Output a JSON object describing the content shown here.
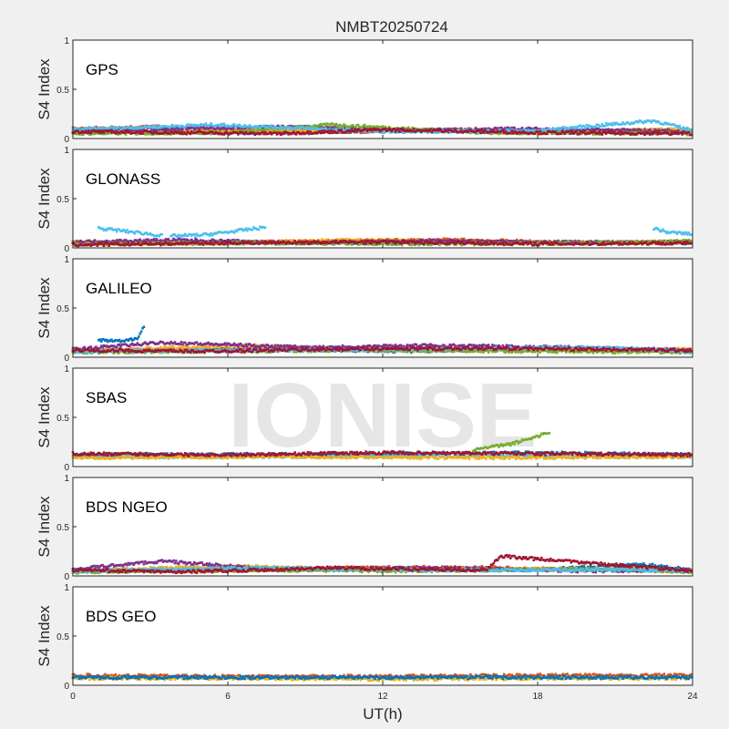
{
  "chart_data": {
    "type": "scatter",
    "title": "NMBT20250724",
    "xlabel": "UT(h)",
    "ylabel": "S4 Index",
    "xlim": [
      0,
      24
    ],
    "ylim": [
      0,
      1
    ],
    "xticks": [
      "0",
      "6",
      "12",
      "18",
      "24"
    ],
    "yticks": [
      "0",
      "0.5",
      "1"
    ],
    "watermark": "IONISE",
    "colors": [
      "#0072BD",
      "#D95319",
      "#EDB120",
      "#7E2F8E",
      "#77AC30",
      "#4DBEEE",
      "#A2142F"
    ],
    "panels": [
      {
        "name": "GPS",
        "series": [
          {
            "c": 0,
            "x": [
              0,
              4,
              8,
              12,
              16,
              20,
              24
            ],
            "y": [
              0.08,
              0.07,
              0.06,
              0.08,
              0.07,
              0.06,
              0.08
            ]
          },
          {
            "c": 1,
            "x": [
              0,
              3,
              7,
              11,
              15,
              19,
              24
            ],
            "y": [
              0.1,
              0.12,
              0.08,
              0.07,
              0.09,
              0.07,
              0.09
            ]
          },
          {
            "c": 2,
            "x": [
              0,
              5,
              10,
              14,
              18,
              24
            ],
            "y": [
              0.06,
              0.07,
              0.09,
              0.08,
              0.06,
              0.1
            ]
          },
          {
            "c": 3,
            "x": [
              0,
              4,
              9,
              13,
              17,
              22,
              24
            ],
            "y": [
              0.07,
              0.1,
              0.12,
              0.08,
              0.1,
              0.08,
              0.07
            ]
          },
          {
            "c": 4,
            "x": [
              0,
              6,
              10,
              16,
              24
            ],
            "y": [
              0.05,
              0.06,
              0.14,
              0.06,
              0.05
            ]
          },
          {
            "c": 5,
            "x": [
              0,
              5.5,
              12,
              18,
              22.5,
              24
            ],
            "y": [
              0.09,
              0.14,
              0.07,
              0.08,
              0.18,
              0.08
            ]
          },
          {
            "c": 6,
            "x": [
              0,
              4,
              8,
              12,
              18,
              24
            ],
            "y": [
              0.07,
              0.06,
              0.05,
              0.09,
              0.06,
              0.05
            ]
          }
        ]
      },
      {
        "name": "GLONASS",
        "series": [
          {
            "c": 5,
            "x": [
              1,
              2,
              3,
              3.5
            ],
            "y": [
              0.2,
              0.17,
              0.14,
              0.12
            ]
          },
          {
            "c": 5,
            "x": [
              3.8,
              5,
              6,
              7.5
            ],
            "y": [
              0.12,
              0.13,
              0.16,
              0.21
            ]
          },
          {
            "c": 5,
            "x": [
              22.5,
              23,
              24
            ],
            "y": [
              0.2,
              0.16,
              0.14
            ]
          },
          {
            "c": 0,
            "x": [
              0,
              6,
              12,
              18,
              24
            ],
            "y": [
              0.05,
              0.06,
              0.05,
              0.06,
              0.05
            ]
          },
          {
            "c": 1,
            "x": [
              0,
              5,
              10,
              15,
              20,
              24
            ],
            "y": [
              0.06,
              0.05,
              0.07,
              0.08,
              0.05,
              0.06
            ]
          },
          {
            "c": 2,
            "x": [
              0,
              6,
              11,
              17,
              24
            ],
            "y": [
              0.04,
              0.05,
              0.08,
              0.05,
              0.06
            ]
          },
          {
            "c": 3,
            "x": [
              0,
              4,
              9,
              14,
              20,
              24
            ],
            "y": [
              0.06,
              0.08,
              0.05,
              0.07,
              0.05,
              0.06
            ]
          },
          {
            "c": 4,
            "x": [
              0,
              7,
              14,
              21,
              24
            ],
            "y": [
              0.04,
              0.05,
              0.04,
              0.05,
              0.07
            ]
          },
          {
            "c": 6,
            "x": [
              0,
              6,
              12,
              18,
              24
            ],
            "y": [
              0.03,
              0.05,
              0.06,
              0.04,
              0.05
            ]
          }
        ]
      },
      {
        "name": "GALILEO",
        "series": [
          {
            "c": 0,
            "x": [
              1,
              2,
              2.5,
              2.8
            ],
            "y": [
              0.17,
              0.16,
              0.2,
              0.33
            ]
          },
          {
            "c": 0,
            "x": [
              3,
              8,
              13,
              18,
              24
            ],
            "y": [
              0.07,
              0.08,
              0.06,
              0.09,
              0.06
            ]
          },
          {
            "c": 1,
            "x": [
              0,
              6,
              12,
              18,
              24
            ],
            "y": [
              0.07,
              0.08,
              0.1,
              0.08,
              0.07
            ]
          },
          {
            "c": 2,
            "x": [
              0,
              6.5,
              12,
              18,
              24
            ],
            "y": [
              0.06,
              0.12,
              0.07,
              0.07,
              0.08
            ]
          },
          {
            "c": 3,
            "x": [
              0,
              3.5,
              9,
              14,
              19,
              24
            ],
            "y": [
              0.08,
              0.15,
              0.1,
              0.12,
              0.1,
              0.07
            ]
          },
          {
            "c": 4,
            "x": [
              0,
              6,
              12,
              18,
              24
            ],
            "y": [
              0.05,
              0.06,
              0.07,
              0.06,
              0.05
            ]
          },
          {
            "c": 5,
            "x": [
              0,
              7,
              13,
              20,
              24
            ],
            "y": [
              0.06,
              0.07,
              0.08,
              0.1,
              0.06
            ]
          },
          {
            "c": 6,
            "x": [
              0,
              5,
              10,
              16,
              24
            ],
            "y": [
              0.07,
              0.06,
              0.08,
              0.09,
              0.07
            ]
          }
        ]
      },
      {
        "name": "SBAS",
        "series": [
          {
            "c": 0,
            "x": [
              0,
              6,
              12,
              18,
              24
            ],
            "y": [
              0.12,
              0.12,
              0.13,
              0.14,
              0.12
            ]
          },
          {
            "c": 4,
            "x": [
              15.5,
              17,
              18.5
            ],
            "y": [
              0.17,
              0.23,
              0.35
            ]
          },
          {
            "c": 5,
            "x": [
              0,
              8,
              16,
              24
            ],
            "y": [
              0.1,
              0.1,
              0.11,
              0.1
            ]
          },
          {
            "c": 2,
            "x": [
              0,
              8,
              16,
              24
            ],
            "y": [
              0.09,
              0.1,
              0.09,
              0.1
            ]
          },
          {
            "c": 6,
            "x": [
              0,
              6,
              12,
              18,
              24
            ],
            "y": [
              0.13,
              0.12,
              0.14,
              0.13,
              0.12
            ]
          }
        ]
      },
      {
        "name": "BDS NGEO",
        "series": [
          {
            "c": 0,
            "x": [
              0,
              6,
              12,
              18,
              22,
              24
            ],
            "y": [
              0.05,
              0.07,
              0.08,
              0.06,
              0.12,
              0.06
            ]
          },
          {
            "c": 1,
            "x": [
              0,
              5,
              10,
              15,
              20,
              24
            ],
            "y": [
              0.06,
              0.05,
              0.08,
              0.09,
              0.06,
              0.05
            ]
          },
          {
            "c": 2,
            "x": [
              0,
              6,
              12,
              19,
              24
            ],
            "y": [
              0.05,
              0.1,
              0.06,
              0.07,
              0.05
            ]
          },
          {
            "c": 3,
            "x": [
              0,
              3.5,
              8,
              14,
              20,
              24
            ],
            "y": [
              0.07,
              0.15,
              0.06,
              0.08,
              0.05,
              0.06
            ]
          },
          {
            "c": 4,
            "x": [
              0,
              7,
              13,
              21,
              24
            ],
            "y": [
              0.04,
              0.06,
              0.05,
              0.07,
              0.04
            ]
          },
          {
            "c": 5,
            "x": [
              0,
              7,
              14,
              22,
              24
            ],
            "y": [
              0.05,
              0.08,
              0.06,
              0.06,
              0.05
            ]
          },
          {
            "c": 6,
            "x": [
              0,
              4,
              10,
              16,
              16.6,
              24
            ],
            "y": [
              0.06,
              0.04,
              0.08,
              0.06,
              0.2,
              0.05
            ]
          }
        ]
      },
      {
        "name": "BDS GEO",
        "series": [
          {
            "c": 1,
            "x": [
              0,
              6,
              12,
              18,
              24
            ],
            "y": [
              0.1,
              0.09,
              0.09,
              0.1,
              0.1
            ]
          },
          {
            "c": 2,
            "x": [
              0,
              6,
              12,
              18,
              24
            ],
            "y": [
              0.07,
              0.07,
              0.06,
              0.07,
              0.07
            ]
          },
          {
            "c": 0,
            "x": [
              0,
              12,
              24
            ],
            "y": [
              0.08,
              0.08,
              0.08
            ]
          }
        ]
      }
    ]
  }
}
